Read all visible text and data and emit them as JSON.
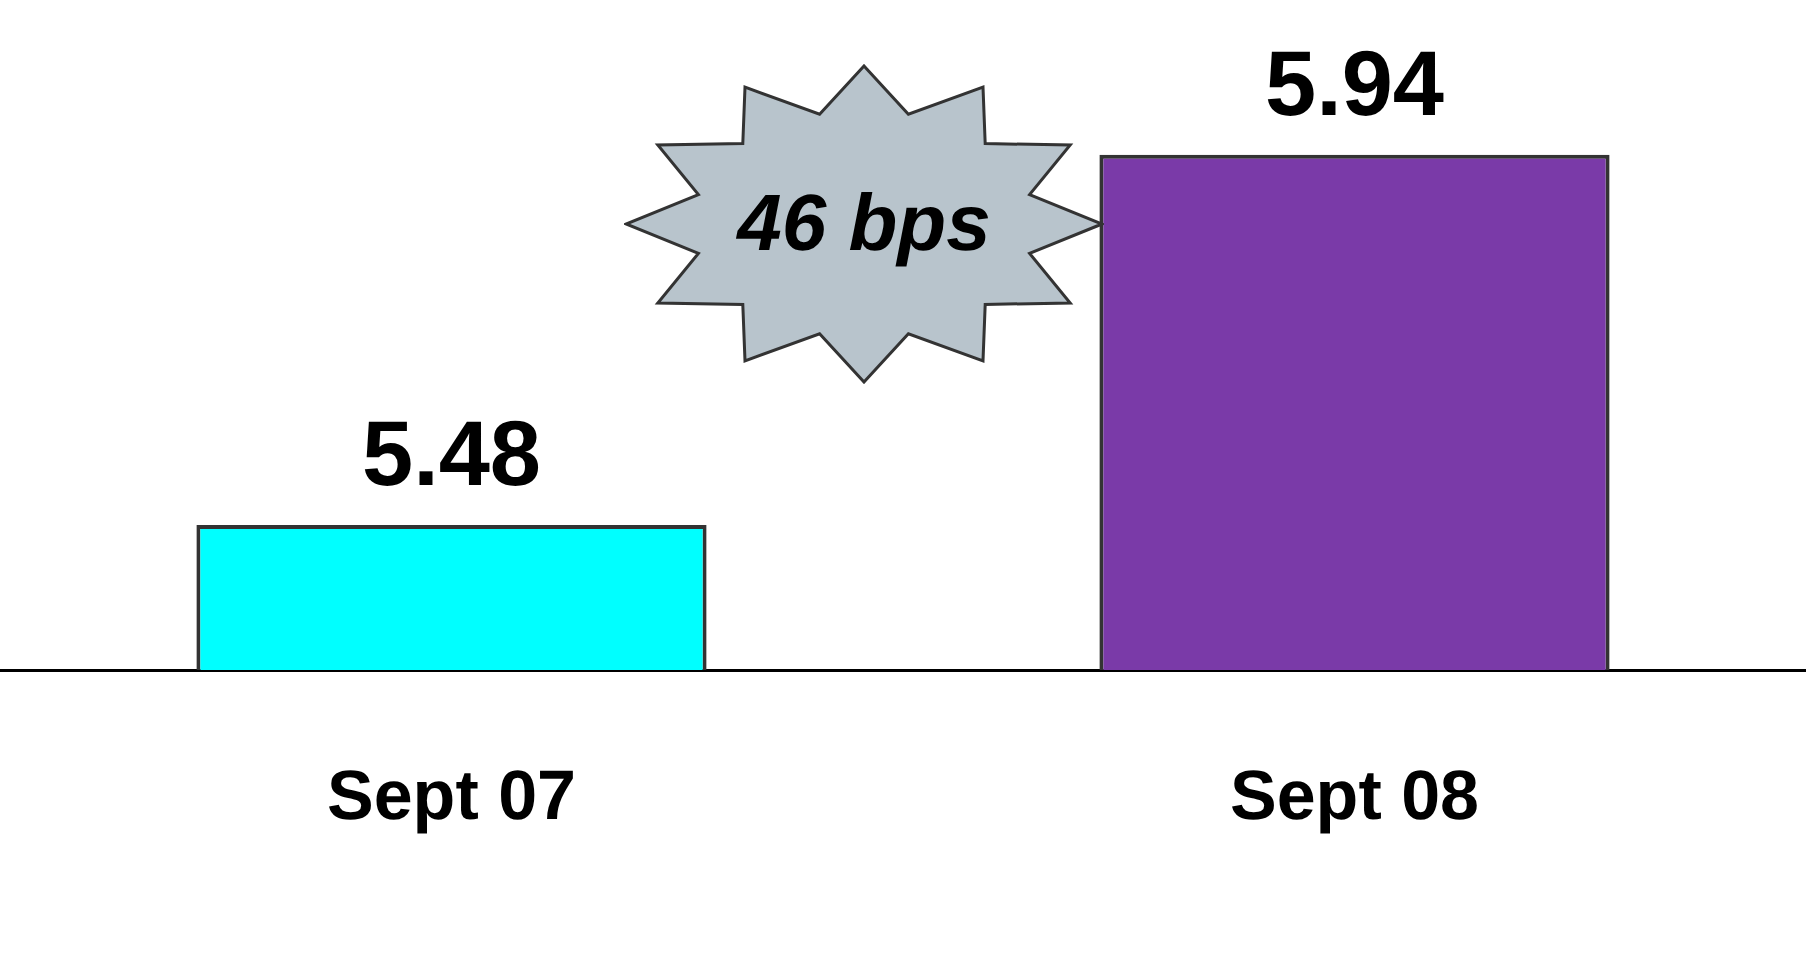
{
  "chart_data": {
    "type": "bar",
    "categories": [
      "Sept 07",
      "Sept 08"
    ],
    "values": [
      5.48,
      5.94
    ],
    "colors": [
      "#00ffff",
      "#7a3aa8"
    ],
    "data_labels": true,
    "grid": false,
    "legend": false,
    "tick_labels": "x",
    "annotations": [
      "46 bps"
    ]
  }
}
